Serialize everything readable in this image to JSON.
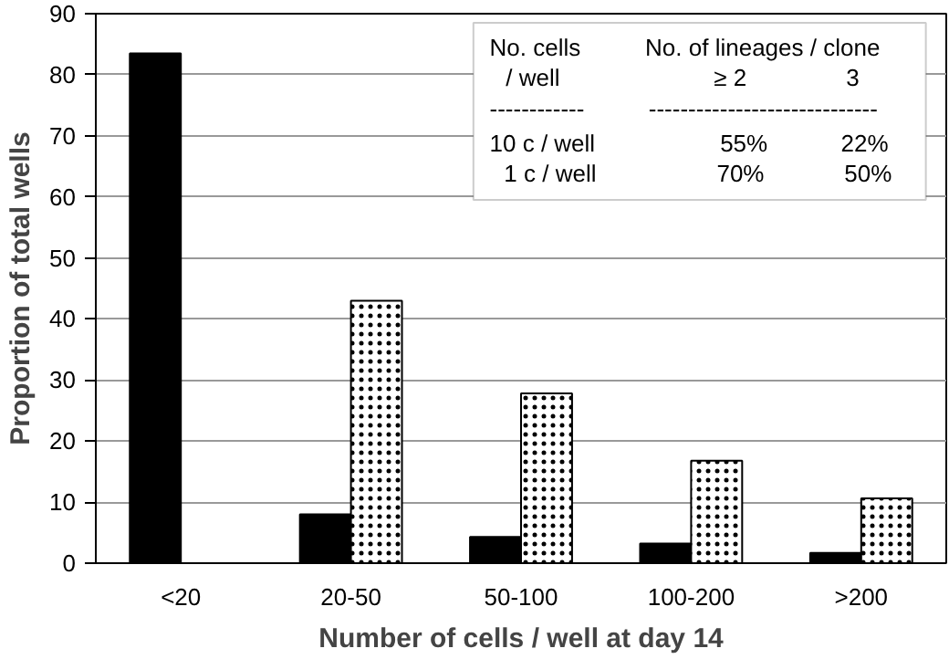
{
  "chart_data": {
    "type": "bar",
    "xlabel": "Number of cells / well at day 14",
    "ylabel": "Proportion of total wells",
    "categories": [
      "<20",
      "20-50",
      "50-100",
      "100-200",
      ">200"
    ],
    "series": [
      {
        "color": "#000000",
        "values": [
          83.5,
          8,
          4.3,
          3.2,
          1.7
        ]
      },
      {
        "color": "#ffffff",
        "values": [
          null,
          43,
          27.8,
          16.8,
          10.6
        ]
      }
    ],
    "ylim": [
      0,
      90
    ],
    "yticks": [
      0,
      10,
      20,
      30,
      40,
      50,
      60,
      70,
      80,
      90
    ],
    "grid": "y",
    "annotations": [
      "No. cells",
      "No. of lineages / clone",
      "/ well",
      "≥ 2",
      "3",
      "------------",
      "-----------------------------",
      "10 c / well",
      "55%",
      "22%",
      "1 c / well",
      "70%",
      "50%"
    ]
  }
}
